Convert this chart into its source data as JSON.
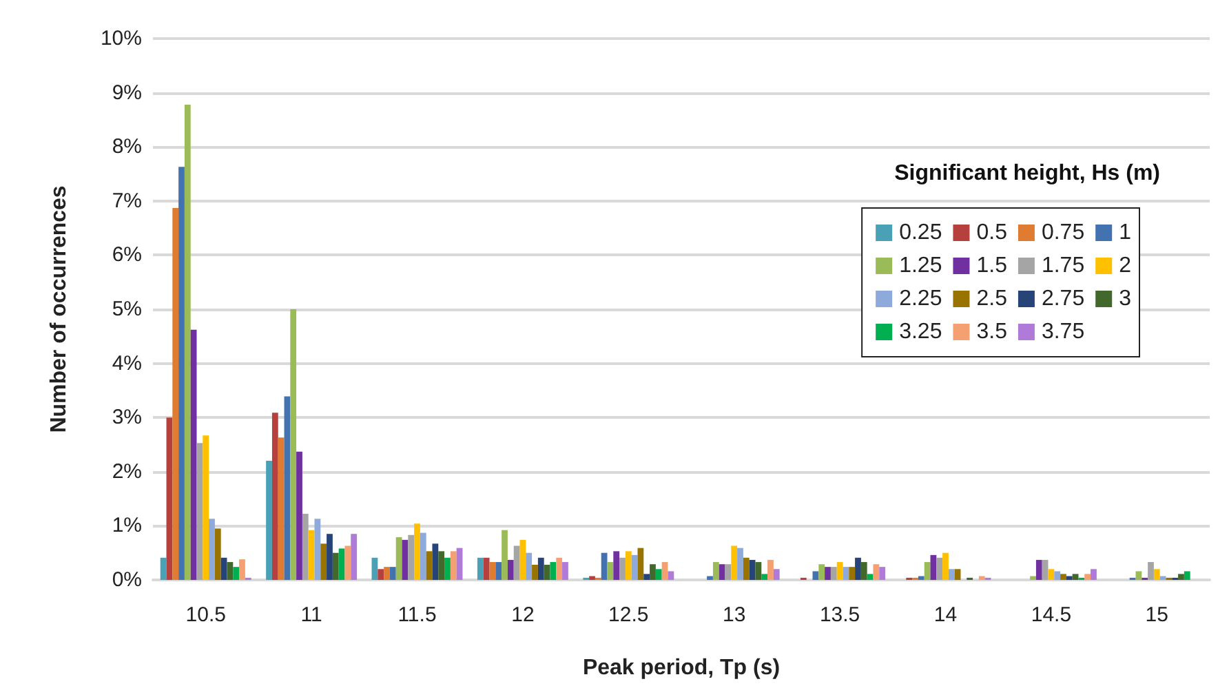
{
  "chart_data": {
    "type": "bar",
    "xlabel": "Peak period, Tp (s)",
    "ylabel": "Number of occurrences",
    "legend_title": "Significant height, Hs (m)",
    "legend": "right",
    "grid": "y",
    "categories": [
      "10.5",
      "11",
      "11.5",
      "12",
      "12.5",
      "13",
      "13.5",
      "14",
      "14.5",
      "15"
    ],
    "ylim": [
      0,
      10
    ],
    "yticks": [
      {
        "value": 0,
        "label": "0%"
      },
      {
        "value": 1,
        "label": "1%"
      },
      {
        "value": 2,
        "label": "2%"
      },
      {
        "value": 3,
        "label": "3%"
      },
      {
        "value": 4,
        "label": "4%"
      },
      {
        "value": 5,
        "label": "5%"
      },
      {
        "value": 6,
        "label": "6%"
      },
      {
        "value": 7,
        "label": "7%"
      },
      {
        "value": 8,
        "label": "8%"
      },
      {
        "value": 9,
        "label": "9%"
      },
      {
        "value": 10,
        "label": "10%"
      }
    ],
    "series": [
      {
        "name": "0.25",
        "color": "#4aa0b5",
        "values": [
          0.41,
          2.2,
          0.41,
          0.41,
          0.04,
          0,
          0,
          0,
          0,
          0
        ]
      },
      {
        "name": "0.5",
        "color": "#b5403e",
        "values": [
          3.0,
          3.09,
          0.2,
          0.41,
          0.07,
          0,
          0.04,
          0.04,
          0,
          0
        ]
      },
      {
        "name": "0.75",
        "color": "#e07c32",
        "values": [
          6.87,
          2.63,
          0.24,
          0.33,
          0.04,
          0,
          0,
          0.04,
          0,
          0
        ]
      },
      {
        "name": "1",
        "color": "#4372b0",
        "values": [
          7.63,
          3.39,
          0.24,
          0.33,
          0.5,
          0.07,
          0.16,
          0.07,
          0,
          0.04
        ]
      },
      {
        "name": "1.25",
        "color": "#9bbb59",
        "values": [
          8.78,
          5.0,
          0.79,
          0.92,
          0.33,
          0.33,
          0.29,
          0.33,
          0.07,
          0.16
        ]
      },
      {
        "name": "1.5",
        "color": "#7030a0",
        "values": [
          4.62,
          2.37,
          0.74,
          0.37,
          0.53,
          0.29,
          0.24,
          0.46,
          0.37,
          0.04
        ]
      },
      {
        "name": "1.75",
        "color": "#a5a5a5",
        "values": [
          2.53,
          1.22,
          0.83,
          0.63,
          0.41,
          0.29,
          0.24,
          0.41,
          0.37,
          0.33
        ]
      },
      {
        "name": "2",
        "color": "#ffc000",
        "values": [
          2.67,
          0.92,
          1.04,
          0.74,
          0.53,
          0.63,
          0.33,
          0.5,
          0.2,
          0.2
        ]
      },
      {
        "name": "2.25",
        "color": "#8eaadb",
        "values": [
          1.13,
          1.13,
          0.87,
          0.5,
          0.46,
          0.59,
          0.24,
          0.2,
          0.16,
          0.07
        ]
      },
      {
        "name": "2.5",
        "color": "#997300",
        "values": [
          0.95,
          0.67,
          0.53,
          0.28,
          0.59,
          0.41,
          0.24,
          0.2,
          0.11,
          0.04
        ]
      },
      {
        "name": "2.75",
        "color": "#264478",
        "values": [
          0.41,
          0.85,
          0.67,
          0.41,
          0.11,
          0.37,
          0.41,
          0,
          0.07,
          0.04
        ]
      },
      {
        "name": "3",
        "color": "#43682b",
        "values": [
          0.33,
          0.5,
          0.53,
          0.28,
          0.29,
          0.33,
          0.33,
          0.04,
          0.11,
          0.11
        ]
      },
      {
        "name": "3.25",
        "color": "#00b050",
        "values": [
          0.24,
          0.58,
          0.41,
          0.33,
          0.2,
          0.11,
          0.11,
          0,
          0.04,
          0.16
        ]
      },
      {
        "name": "3.5",
        "color": "#f4a070",
        "values": [
          0.38,
          0.63,
          0.53,
          0.41,
          0.33,
          0.37,
          0.29,
          0.07,
          0.11,
          0
        ]
      },
      {
        "name": "3.75",
        "color": "#b07ad8",
        "values": [
          0.04,
          0.85,
          0.59,
          0.33,
          0.16,
          0.2,
          0.24,
          0.04,
          0.2,
          0
        ]
      }
    ]
  }
}
